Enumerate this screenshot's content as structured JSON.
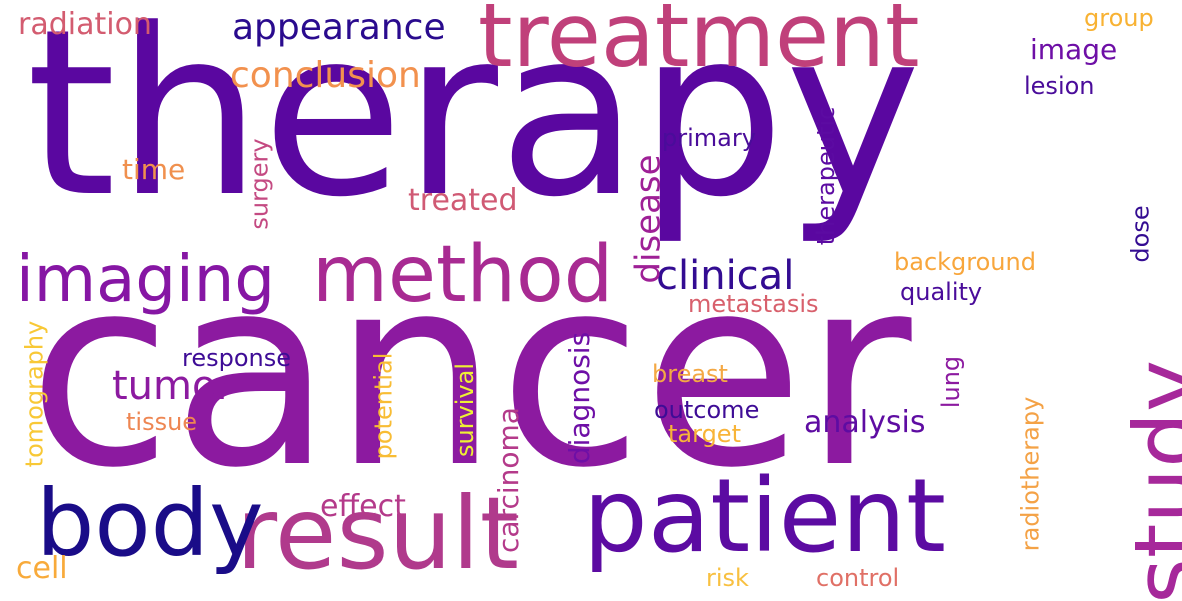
{
  "words": [
    {
      "key": "therapy",
      "text": "therapy",
      "color": "#5a07a0"
    },
    {
      "key": "cancer",
      "text": "cancer",
      "color": "#8c1aa0"
    },
    {
      "key": "treatment",
      "text": "treatment",
      "color": "#c0407a"
    },
    {
      "key": "patient",
      "text": "patient",
      "color": "#5c0ba2"
    },
    {
      "key": "result",
      "text": "result",
      "color": "#b03a8c"
    },
    {
      "key": "body",
      "text": "body",
      "color": "#1a0c88"
    },
    {
      "key": "study",
      "text": "study",
      "color": "#a6289a"
    },
    {
      "key": "method",
      "text": "method",
      "color": "#a82a92"
    },
    {
      "key": "imaging",
      "text": "imaging",
      "color": "#8616a4"
    },
    {
      "key": "appearance",
      "text": "appearance",
      "color": "#2a0b8e"
    },
    {
      "key": "conclusion",
      "text": "conclusion",
      "color": "#f2914e"
    },
    {
      "key": "clinical",
      "text": "clinical",
      "color": "#330c92"
    },
    {
      "key": "tumor",
      "text": "tumor",
      "color": "#8c1aa0"
    },
    {
      "key": "radiation",
      "text": "radiation",
      "color": "#d35c70"
    },
    {
      "key": "image",
      "text": "image",
      "color": "#6e0fa6"
    },
    {
      "key": "lesion",
      "text": "lesion",
      "color": "#4a0c9a"
    },
    {
      "key": "group",
      "text": "group",
      "color": "#f8b233"
    },
    {
      "key": "primary",
      "text": "primary",
      "color": "#4a0c9a"
    },
    {
      "key": "time",
      "text": "time",
      "color": "#f0904e"
    },
    {
      "key": "treated",
      "text": "treated",
      "color": "#d05a74"
    },
    {
      "key": "surgery",
      "text": "surgery",
      "color": "#c44a82"
    },
    {
      "key": "disease",
      "text": "disease",
      "color": "#9e2096"
    },
    {
      "key": "therapeutic",
      "text": "therapeutic",
      "color": "#5c0ba2"
    },
    {
      "key": "dose",
      "text": "dose",
      "color": "#340c92"
    },
    {
      "key": "background",
      "text": "background",
      "color": "#f8a63c"
    },
    {
      "key": "quality",
      "text": "quality",
      "color": "#4a0c9a"
    },
    {
      "key": "metastasis",
      "text": "metastasis",
      "color": "#d8606c"
    },
    {
      "key": "response",
      "text": "response",
      "color": "#3e0c96"
    },
    {
      "key": "tomography",
      "text": "tomography",
      "color": "#f8c836"
    },
    {
      "key": "tissue",
      "text": "tissue",
      "color": "#ee8652"
    },
    {
      "key": "potential",
      "text": "potential",
      "color": "#f8bc34"
    },
    {
      "key": "survival",
      "text": "survival",
      "color": "#eef034"
    },
    {
      "key": "carcinoma",
      "text": "carcinoma",
      "color": "#b43a8a"
    },
    {
      "key": "diagnosis",
      "text": "diagnosis",
      "color": "#6e0fa6"
    },
    {
      "key": "breast",
      "text": "breast",
      "color": "#f4a844"
    },
    {
      "key": "outcome",
      "text": "outcome",
      "color": "#3e0c96"
    },
    {
      "key": "target",
      "text": "target",
      "color": "#f8b438"
    },
    {
      "key": "analysis",
      "text": "analysis",
      "color": "#5e0ca2"
    },
    {
      "key": "lung",
      "text": "lung",
      "color": "#8c1aa0"
    },
    {
      "key": "radiotherapy",
      "text": "radiotherapy",
      "color": "#f4a246"
    },
    {
      "key": "effect",
      "text": "effect",
      "color": "#b43a8a"
    },
    {
      "key": "cell",
      "text": "cell",
      "color": "#f8aa3a"
    },
    {
      "key": "risk",
      "text": "risk",
      "color": "#f8c040"
    },
    {
      "key": "control",
      "text": "control",
      "color": "#e07066"
    }
  ]
}
